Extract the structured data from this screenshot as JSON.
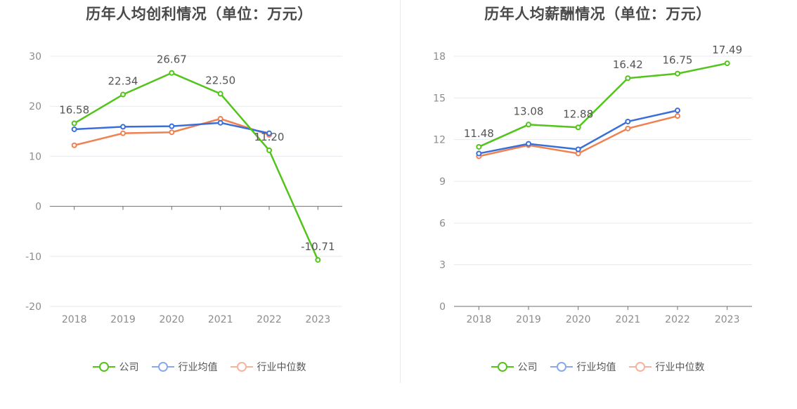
{
  "legend": {
    "company": "公司",
    "industry_avg": "行业均值",
    "industry_median": "行业中位数"
  },
  "colors": {
    "company": "#52c41a",
    "industry_avg": "#3a6fd8",
    "industry_median": "#f08050",
    "legend_avg": "#8aa9ec",
    "legend_median": "#f6b49c"
  },
  "chart_data": [
    {
      "type": "line",
      "title": "历年人均创利情况（单位：万元）",
      "categories": [
        "2018",
        "2019",
        "2020",
        "2021",
        "2022",
        "2023"
      ],
      "ylim": [
        -20,
        30
      ],
      "yticks": [
        30,
        20,
        10,
        0,
        -10,
        -20
      ],
      "grid": true,
      "legend_position": "bottom",
      "series": [
        {
          "name": "公司",
          "values": [
            16.58,
            22.34,
            26.67,
            22.5,
            11.2,
            -10.71
          ],
          "labels": [
            "16.58",
            "22.34",
            "26.67",
            "22.50",
            "11.20",
            "-10.71"
          ]
        },
        {
          "name": "行业均值",
          "values": [
            15.4,
            15.9,
            16.0,
            16.7,
            14.6,
            null
          ]
        },
        {
          "name": "行业中位数",
          "values": [
            12.2,
            14.6,
            14.8,
            17.5,
            14.3,
            null
          ]
        }
      ]
    },
    {
      "type": "line",
      "title": "历年人均薪酬情况（单位：万元）",
      "categories": [
        "2018",
        "2019",
        "2020",
        "2021",
        "2022",
        "2023"
      ],
      "ylim": [
        0,
        18
      ],
      "yticks": [
        18,
        15,
        12,
        9,
        6,
        3,
        0
      ],
      "grid": true,
      "legend_position": "bottom",
      "series": [
        {
          "name": "公司",
          "values": [
            11.48,
            13.08,
            12.88,
            16.42,
            16.75,
            17.49
          ],
          "labels": [
            "11.48",
            "13.08",
            "12.88",
            "16.42",
            "16.75",
            "17.49"
          ]
        },
        {
          "name": "行业均值",
          "values": [
            11.0,
            11.7,
            11.3,
            13.3,
            14.1,
            null
          ]
        },
        {
          "name": "行业中位数",
          "values": [
            10.8,
            11.6,
            11.0,
            12.8,
            13.7,
            null
          ]
        }
      ]
    }
  ]
}
